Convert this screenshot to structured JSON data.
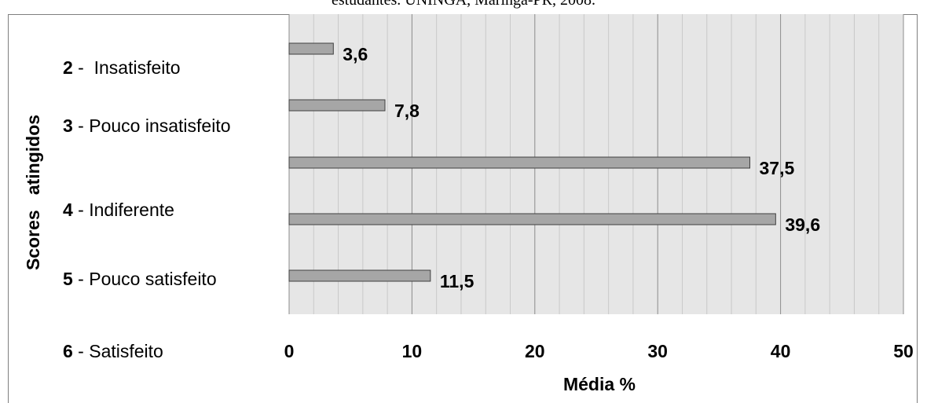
{
  "caption": "estudantes. UNINGÁ, Maringá-PR, 2008.",
  "chart_data": {
    "type": "bar",
    "orientation": "horizontal",
    "ylabel": "Scores   atingidos",
    "xlabel": "Média %",
    "xlim": [
      0,
      50
    ],
    "x_ticks": [
      "0",
      "10",
      "20",
      "30",
      "40",
      "50"
    ],
    "x_tick_values": [
      0,
      10,
      20,
      30,
      40,
      50
    ],
    "grid": true,
    "category_labels": [
      {
        "num": "2",
        "text": " -  Insatisfeito"
      },
      {
        "num": "3",
        "text": " - Pouco insatisfeito"
      },
      {
        "num": "4",
        "text": " - Indiferente"
      },
      {
        "num": "5",
        "text": " - Pouco satisfeito"
      },
      {
        "num": "6",
        "text": " - Satisfeito"
      }
    ],
    "values": [
      3.6,
      7.8,
      37.5,
      39.6,
      11.5
    ],
    "value_labels": [
      "3,6",
      "7,8",
      "37,5",
      "39,6",
      "11,5"
    ],
    "bar_color": "#a6a6a6",
    "bar_edge_color": "#404040",
    "plot_background": "#e6e6e6"
  }
}
